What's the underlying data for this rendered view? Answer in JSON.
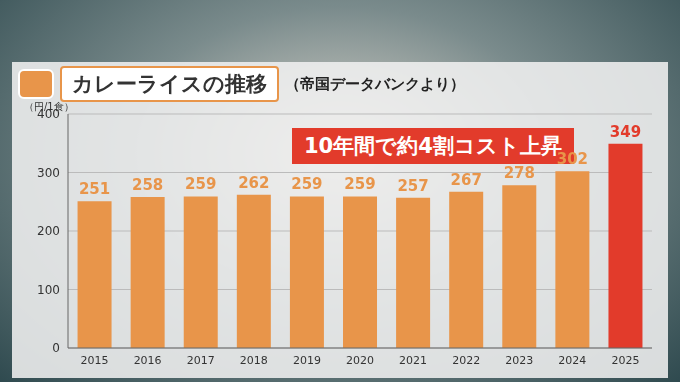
{
  "chart_data": {
    "type": "bar",
    "title": "カレーライスの推移",
    "subtitle": "（帝国データバンクより）",
    "y_label": "（円/1食）",
    "annotation": "10年間で約4割コスト上昇",
    "categories": [
      "2015",
      "2016",
      "2017",
      "2018",
      "2019",
      "2020",
      "2021",
      "2022",
      "2023",
      "2024",
      "2025"
    ],
    "values": [
      251,
      258,
      259,
      262,
      259,
      259,
      257,
      267,
      278,
      302,
      349
    ],
    "colors": [
      "#e8954a",
      "#e8954a",
      "#e8954a",
      "#e8954a",
      "#e8954a",
      "#e8954a",
      "#e8954a",
      "#e8954a",
      "#e8954a",
      "#e8954a",
      "#e23b2b"
    ],
    "ylim": [
      0,
      400
    ],
    "yticks": [
      0,
      100,
      200,
      300,
      400
    ],
    "grid": true,
    "data_labels": true
  }
}
